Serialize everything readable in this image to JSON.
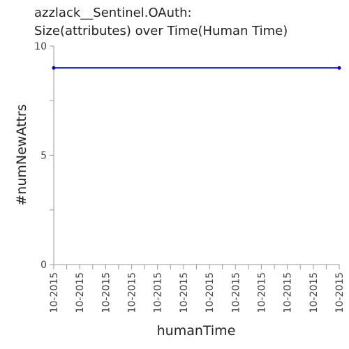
{
  "title_lines": [
    "azzlack__Sentinel.OAuth:",
    "Size(attributes) over Time(Human Time)"
  ],
  "chart_data": {
    "type": "line",
    "title": "azzlack__Sentinel.OAuth: Size(attributes) over Time(Human Time)",
    "xlabel": "humanTime",
    "ylabel": "#numNewAttrs",
    "ylim": [
      0,
      10
    ],
    "y_ticks": [
      0,
      5,
      10
    ],
    "x_tick_labels": [
      "10-2015",
      "10-2015",
      "10-2015",
      "10-2015",
      "10-2015",
      "10-2015",
      "10-2015",
      "10-2015",
      "10-2015",
      "10-2015",
      "10-2015",
      "10-2015"
    ],
    "series": [
      {
        "values": [
          9,
          9
        ],
        "color": "#0000cc"
      }
    ],
    "grid": false
  }
}
